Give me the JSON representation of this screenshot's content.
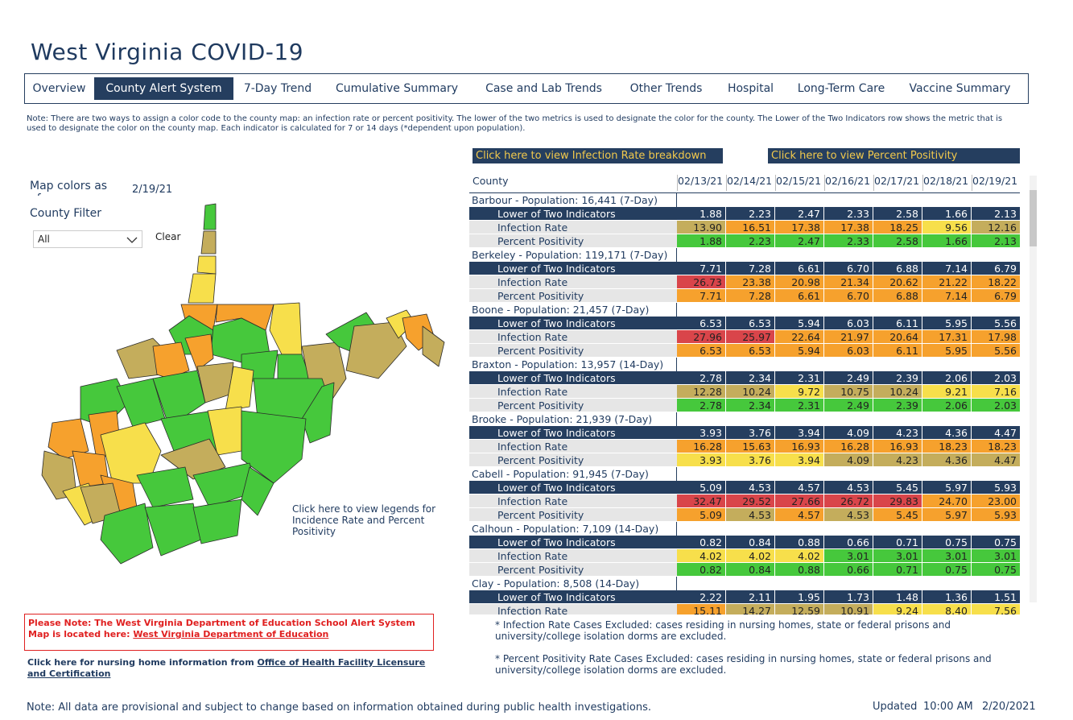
{
  "header": {
    "title": "West Virginia COVID-19"
  },
  "tabs": [
    "Overview",
    "County Alert System",
    "7-Day Trend",
    "Cumulative Summary",
    "Case and Lab Trends",
    "Other Trends",
    "Hospital",
    "Long-Term Care",
    "Vaccine Summary"
  ],
  "active_tab": "County Alert System",
  "note": "Note: There are two ways to assign a color code to the county map: an infection rate or percent positivity. The lower of the two metrics is used to designate the color for the county. The Lower of the Two Indicators row shows the metric that is used to designate the color on the county map. Each indicator is calculated for 7 or 14 days (*dependent upon population).",
  "buttons": [
    "Click here to view Infection Rate breakdown",
    "Click here to view Percent Positivity"
  ],
  "map": {
    "colors_as_of_label": "Map colors as of:",
    "date": "2/19/21",
    "filter_label": "County Filter",
    "filter_value": "All",
    "clear": "Clear",
    "legend_link": "Click here to view legends for Incidence Rate and Percent Positivity"
  },
  "table": {
    "county_header": "County",
    "dates": [
      "02/13/21",
      "02/14/21",
      "02/15/21",
      "02/16/21",
      "02/17/21",
      "02/18/21",
      "02/19/21"
    ],
    "groups": [
      {
        "title": "Barbour - Population: 16,441 (7-Day)",
        "rows": [
          {
            "label": "Lower of Two Indicators",
            "values": [
              "1.88",
              "2.23",
              "2.47",
              "2.33",
              "2.58",
              "1.66",
              "2.13"
            ],
            "color": "#253e5f"
          },
          {
            "label": "Infection Rate",
            "values": [
              "13.90",
              "16.51",
              "17.38",
              "17.38",
              "18.25",
              "9.56",
              "12.16"
            ],
            "colors": [
              "#c4ad5c",
              "#f6a12d",
              "#f6a12d",
              "#f6a12d",
              "#f6a12d",
              "#f7df4b",
              "#c4ad5c"
            ]
          },
          {
            "label": "Percent Positivity",
            "values": [
              "1.88",
              "2.23",
              "2.47",
              "2.33",
              "2.58",
              "1.66",
              "2.13"
            ],
            "color": "#46c83c"
          }
        ]
      },
      {
        "title": "Berkeley - Population: 119,171 (7-Day)",
        "rows": [
          {
            "label": "Lower of Two Indicators",
            "values": [
              "7.71",
              "7.28",
              "6.61",
              "6.70",
              "6.88",
              "7.14",
              "6.79"
            ],
            "color": "#253e5f"
          },
          {
            "label": "Infection Rate",
            "values": [
              "26.73",
              "23.38",
              "20.98",
              "21.34",
              "20.62",
              "21.22",
              "18.22"
            ],
            "colors": [
              "#d9454a",
              "#f6a12d",
              "#f6a12d",
              "#f6a12d",
              "#f6a12d",
              "#f6a12d",
              "#f6a12d"
            ]
          },
          {
            "label": "Percent Positivity",
            "values": [
              "7.71",
              "7.28",
              "6.61",
              "6.70",
              "6.88",
              "7.14",
              "6.79"
            ],
            "color": "#f6a12d"
          }
        ]
      },
      {
        "title": "Boone - Population: 21,457 (7-Day)",
        "rows": [
          {
            "label": "Lower of Two Indicators",
            "values": [
              "6.53",
              "6.53",
              "5.94",
              "6.03",
              "6.11",
              "5.95",
              "5.56"
            ],
            "color": "#253e5f"
          },
          {
            "label": "Infection Rate",
            "values": [
              "27.96",
              "25.97",
              "22.64",
              "21.97",
              "20.64",
              "17.31",
              "17.98"
            ],
            "colors": [
              "#d9454a",
              "#d9454a",
              "#f6a12d",
              "#f6a12d",
              "#f6a12d",
              "#f6a12d",
              "#f6a12d"
            ]
          },
          {
            "label": "Percent Positivity",
            "values": [
              "6.53",
              "6.53",
              "5.94",
              "6.03",
              "6.11",
              "5.95",
              "5.56"
            ],
            "color": "#f6a12d"
          }
        ]
      },
      {
        "title": "Braxton - Population: 13,957 (14-Day)",
        "rows": [
          {
            "label": "Lower of Two Indicators",
            "values": [
              "2.78",
              "2.34",
              "2.31",
              "2.49",
              "2.39",
              "2.06",
              "2.03"
            ],
            "color": "#253e5f"
          },
          {
            "label": "Infection Rate",
            "values": [
              "12.28",
              "10.24",
              "9.72",
              "10.75",
              "10.24",
              "9.21",
              "7.16"
            ],
            "colors": [
              "#c4ad5c",
              "#c4ad5c",
              "#f7df4b",
              "#c4ad5c",
              "#c4ad5c",
              "#f7df4b",
              "#f7df4b"
            ]
          },
          {
            "label": "Percent Positivity",
            "values": [
              "2.78",
              "2.34",
              "2.31",
              "2.49",
              "2.39",
              "2.06",
              "2.03"
            ],
            "color": "#46c83c"
          }
        ]
      },
      {
        "title": "Brooke - Population: 21,939 (7-Day)",
        "rows": [
          {
            "label": "Lower of Two Indicators",
            "values": [
              "3.93",
              "3.76",
              "3.94",
              "4.09",
              "4.23",
              "4.36",
              "4.47"
            ],
            "color": "#253e5f"
          },
          {
            "label": "Infection Rate",
            "values": [
              "16.28",
              "15.63",
              "16.93",
              "16.28",
              "16.93",
              "18.23",
              "18.23"
            ],
            "color": "#f6a12d"
          },
          {
            "label": "Percent Positivity",
            "values": [
              "3.93",
              "3.76",
              "3.94",
              "4.09",
              "4.23",
              "4.36",
              "4.47"
            ],
            "colors": [
              "#f7df4b",
              "#f7df4b",
              "#f7df4b",
              "#c4ad5c",
              "#c4ad5c",
              "#c4ad5c",
              "#c4ad5c"
            ]
          }
        ]
      },
      {
        "title": "Cabell - Population: 91,945 (7-Day)",
        "rows": [
          {
            "label": "Lower of Two Indicators",
            "values": [
              "5.09",
              "4.53",
              "4.57",
              "4.53",
              "5.45",
              "5.97",
              "5.93"
            ],
            "color": "#253e5f"
          },
          {
            "label": "Infection Rate",
            "values": [
              "32.47",
              "29.52",
              "27.66",
              "26.72",
              "29.83",
              "24.70",
              "23.00"
            ],
            "colors": [
              "#d9454a",
              "#d9454a",
              "#d9454a",
              "#d9454a",
              "#d9454a",
              "#f6a12d",
              "#f6a12d"
            ]
          },
          {
            "label": "Percent Positivity",
            "values": [
              "5.09",
              "4.53",
              "4.57",
              "4.53",
              "5.45",
              "5.97",
              "5.93"
            ],
            "colors": [
              "#f6a12d",
              "#c4ad5c",
              "#f6a12d",
              "#c4ad5c",
              "#f6a12d",
              "#f6a12d",
              "#f6a12d"
            ]
          }
        ]
      },
      {
        "title": "Calhoun - Population: 7,109 (14-Day)",
        "rows": [
          {
            "label": "Lower of Two Indicators",
            "values": [
              "0.82",
              "0.84",
              "0.88",
              "0.66",
              "0.71",
              "0.75",
              "0.75"
            ],
            "color": "#253e5f"
          },
          {
            "label": "Infection Rate",
            "values": [
              "4.02",
              "4.02",
              "4.02",
              "3.01",
              "3.01",
              "3.01",
              "3.01"
            ],
            "colors": [
              "#f7df4b",
              "#f7df4b",
              "#f7df4b",
              "#46c83c",
              "#46c83c",
              "#46c83c",
              "#46c83c"
            ]
          },
          {
            "label": "Percent Positivity",
            "values": [
              "0.82",
              "0.84",
              "0.88",
              "0.66",
              "0.71",
              "0.75",
              "0.75"
            ],
            "color": "#46c83c"
          }
        ]
      },
      {
        "title": "Clay - Population: 8,508 (14-Day)",
        "rows": [
          {
            "label": "Lower of Two Indicators",
            "values": [
              "2.22",
              "2.11",
              "1.95",
              "1.73",
              "1.48",
              "1.36",
              "1.51"
            ],
            "color": "#253e5f"
          },
          {
            "label": "Infection Rate",
            "values": [
              "15.11",
              "14.27",
              "12.59",
              "10.91",
              "9.24",
              "8.40",
              "7.56"
            ],
            "colors": [
              "#f6a12d",
              "#c4ad5c",
              "#c4ad5c",
              "#c4ad5c",
              "#f7df4b",
              "#f7df4b",
              "#f7df4b"
            ]
          }
        ]
      }
    ]
  },
  "footnotes": [
    "* Infection Rate Cases Excluded: cases residing in nursing homes, state or federal prisons and university/college isolation dorms are excluded.",
    "* Percent Positivity Rate Cases Excluded: cases residing in nursing homes, state or federal prisons and university/college isolation dorms are excluded."
  ],
  "education_note": {
    "text": "Please Note: The West Virginia Department of Education School Alert System Map is located here:",
    "link": "West Virginia Department of Education"
  },
  "nursing_note": {
    "text": "Click here for nursing home information from",
    "link": "Office of Health Facility Licensure and Certification"
  },
  "footer": {
    "note": "Note: All data are provisional and subject to change based on information obtained during public health investigations.",
    "updated_label": "Updated",
    "time": "10:00 AM",
    "date": "2/20/2021"
  }
}
